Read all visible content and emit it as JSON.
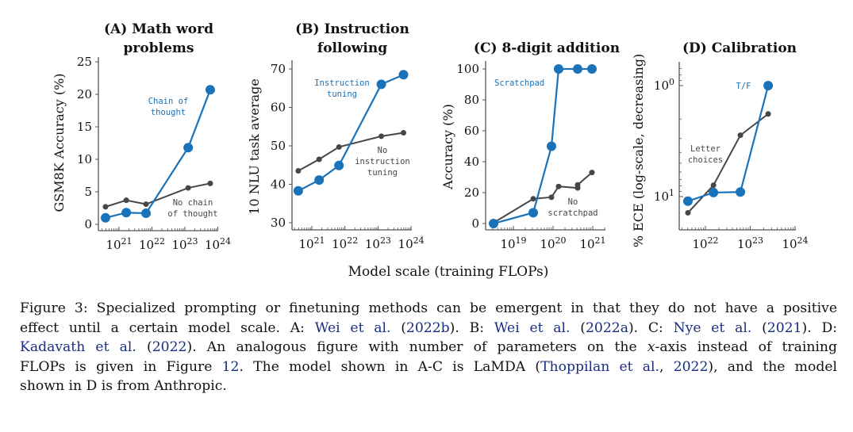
{
  "figure": {
    "shared_xlabel": "Model scale (training FLOPs)",
    "colors": {
      "blue": "#1a72b9",
      "gray": "#474747",
      "axis": "#555555"
    }
  },
  "chart_data": [
    {
      "id": "A",
      "type": "line",
      "title_lines": [
        "(A) Math word",
        "problems"
      ],
      "ylabel": "GSM8K Accuracy (%)",
      "xlabel": "Model scale (training FLOPs)",
      "xscale": "log",
      "xlim_log10": [
        20.4,
        24
      ],
      "xticks_log10": [
        21,
        22,
        23,
        24
      ],
      "xtick_labels": [
        "10^21",
        "10^22",
        "10^23",
        "10^24"
      ],
      "ylim": [
        0,
        25
      ],
      "yticks": [
        0,
        5,
        10,
        15,
        20,
        25
      ],
      "ytick_labels": [
        "0",
        "5",
        "10",
        "15",
        "20",
        "25"
      ],
      "series": [
        {
          "name": "Chain of thought",
          "label_lines": [
            "Chain of",
            "thought"
          ],
          "color": "#1a72b9",
          "marker": "large",
          "x_log10": [
            20.59,
            21.22,
            21.82,
            23.1,
            23.77
          ],
          "y": [
            1.0,
            1.8,
            1.7,
            11.8,
            20.7
          ]
        },
        {
          "name": "No chain of thought",
          "label_lines": [
            "No chain",
            "of thought"
          ],
          "color": "#474747",
          "marker": "small",
          "x_log10": [
            20.59,
            21.22,
            21.82,
            23.1,
            23.77
          ],
          "y": [
            2.7,
            3.7,
            3.1,
            5.6,
            6.3
          ]
        }
      ]
    },
    {
      "id": "B",
      "type": "line",
      "title_lines": [
        "(B) Instruction",
        "following"
      ],
      "ylabel": "10 NLU task average",
      "xlabel": "Model scale (training FLOPs)",
      "xscale": "log",
      "xlim_log10": [
        20.4,
        24
      ],
      "xticks_log10": [
        21,
        22,
        23,
        24
      ],
      "xtick_labels": [
        "10^21",
        "10^22",
        "10^23",
        "10^24"
      ],
      "ylim": [
        30,
        70
      ],
      "yticks": [
        30,
        40,
        50,
        60,
        70
      ],
      "ytick_labels": [
        "30",
        "40",
        "50",
        "60",
        "70"
      ],
      "series": [
        {
          "name": "Instruction tuning",
          "label_lines": [
            "Instruction",
            "tuning"
          ],
          "color": "#1a72b9",
          "marker": "large",
          "x_log10": [
            20.59,
            21.22,
            21.82,
            23.1,
            23.77
          ],
          "y": [
            38.3,
            41.1,
            44.9,
            66.0,
            68.5
          ]
        },
        {
          "name": "No instruction tuning",
          "label_lines": [
            "No",
            "instruction",
            "tuning"
          ],
          "color": "#474747",
          "marker": "small",
          "x_log10": [
            20.59,
            21.22,
            21.82,
            23.1,
            23.77
          ],
          "y": [
            43.5,
            46.5,
            49.7,
            52.5,
            53.4
          ]
        }
      ]
    },
    {
      "id": "C",
      "type": "line",
      "title_lines": [
        "(C) 8-digit addition"
      ],
      "ylabel": "Accuracy (%)",
      "xlabel": "Model scale (training FLOPs)",
      "xscale": "log",
      "xlim_log10": [
        18.3,
        21.1
      ],
      "xticks_log10": [
        19,
        20,
        21
      ],
      "xtick_labels": [
        "10^19",
        "10^20",
        "10^21"
      ],
      "ylim": [
        0,
        100
      ],
      "yticks": [
        0,
        20,
        40,
        60,
        80,
        100
      ],
      "ytick_labels": [
        "0",
        "20",
        "40",
        "60",
        "80",
        "100"
      ],
      "series": [
        {
          "name": "Scratchpad",
          "label_lines": [
            "Scratchpad"
          ],
          "color": "#1a72b9",
          "marker": "large",
          "x_log10": [
            18.5,
            19.5,
            19.96,
            20.14,
            20.62,
            20.98
          ],
          "y": [
            0,
            7,
            50,
            100,
            100,
            100
          ]
        },
        {
          "name": "No scratchpad",
          "label_lines": [
            "No",
            "scratchpad"
          ],
          "color": "#474747",
          "marker": "small",
          "x_log10": [
            18.5,
            19.5,
            19.96,
            20.14,
            20.62,
            20.62,
            20.98
          ],
          "y": [
            0.5,
            16,
            17,
            24,
            23,
            25,
            33
          ]
        }
      ]
    },
    {
      "id": "D",
      "type": "line",
      "title_lines": [
        "(D) Calibration"
      ],
      "ylabel": "% ECE (log-scale, decreasing)",
      "xlabel": "Model scale (training FLOPs)",
      "xscale": "log",
      "yscale": "log-decreasing",
      "xlim_log10": [
        21.3,
        24
      ],
      "xticks_log10": [
        22,
        23,
        24
      ],
      "xtick_labels": [
        "10^22",
        "10^23",
        "10^24"
      ],
      "ylim": [
        0.6,
        20
      ],
      "yticks": [
        1,
        10
      ],
      "ytick_labels": [
        "10^0",
        "10^1"
      ],
      "series": [
        {
          "name": "T/F",
          "label_lines": [
            "T/F"
          ],
          "color": "#1a72b9",
          "marker": "large",
          "x_log10": [
            21.61,
            22.18,
            22.78,
            23.4
          ],
          "y": [
            11.0,
            9.2,
            9.1,
            1.0
          ]
        },
        {
          "name": "Letter choices",
          "label_lines": [
            "Letter",
            "choices"
          ],
          "color": "#474747",
          "marker": "small",
          "x_log10": [
            21.61,
            22.18,
            22.78,
            23.4
          ],
          "y": [
            14.0,
            7.9,
            2.8,
            1.8
          ]
        }
      ]
    }
  ],
  "caption": {
    "lines": [
      [
        {
          "t": "Figure 3: Specialized prompting or finetuning methods can be emergent in that they do not have a positive"
        }
      ],
      [
        {
          "t": "effect until a certain model scale.  A: "
        },
        {
          "t": "Wei et al.",
          "cite": true
        },
        {
          "t": " ("
        },
        {
          "t": "2022b",
          "cite": true
        },
        {
          "t": ").  B: "
        },
        {
          "t": "Wei et al.",
          "cite": true
        },
        {
          "t": " ("
        },
        {
          "t": "2022a",
          "cite": true
        },
        {
          "t": ").  C: "
        },
        {
          "t": "Nye et al.",
          "cite": true
        },
        {
          "t": " ("
        },
        {
          "t": "2021",
          "cite": true
        },
        {
          "t": ").  D:"
        }
      ],
      [
        {
          "t": "Kadavath et al.",
          "cite": true
        },
        {
          "t": " ("
        },
        {
          "t": "2022",
          "cite": true
        },
        {
          "t": ").  An analogous figure with number of parameters on the "
        },
        {
          "t": "x",
          "italic": true
        },
        {
          "t": "-axis instead of training"
        }
      ],
      [
        {
          "t": "FLOPs is given in Figure "
        },
        {
          "t": "12",
          "cite": true
        },
        {
          "t": ".  The model shown in A-C is LaMDA ("
        },
        {
          "t": "Thoppilan et al.",
          "cite": true
        },
        {
          "t": ", "
        },
        {
          "t": "2022",
          "cite": true
        },
        {
          "t": "), and the model"
        }
      ],
      [
        {
          "t": "shown in D is from Anthropic."
        }
      ]
    ]
  }
}
